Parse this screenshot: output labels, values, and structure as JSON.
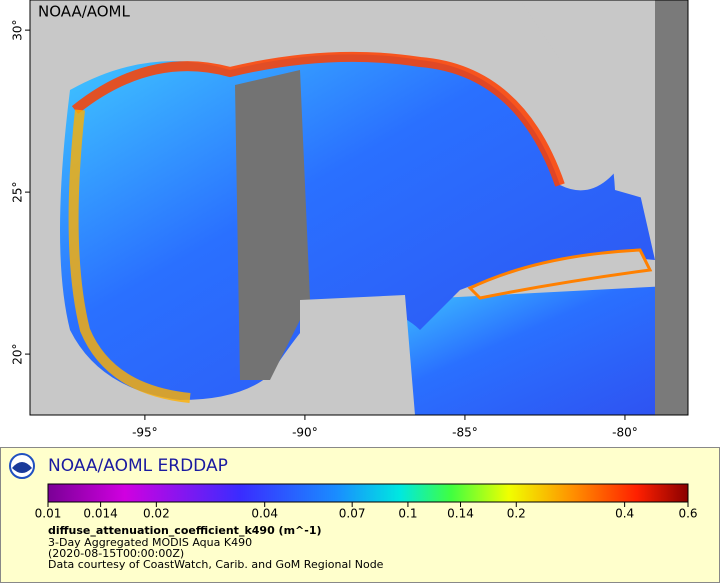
{
  "map": {
    "watermark": "NOAA/AOML",
    "xlim": [
      -98.59,
      -78.03
    ],
    "ylim": [
      18.12,
      30.93
    ],
    "xticks": [
      {
        "value": -95,
        "label": "-95°"
      },
      {
        "value": -90,
        "label": "-90°"
      },
      {
        "value": -85,
        "label": "-85°"
      },
      {
        "value": -80,
        "label": "-80°"
      }
    ],
    "yticks": [
      {
        "value": 20,
        "label": "20°"
      },
      {
        "value": 25,
        "label": "25°"
      },
      {
        "value": 30,
        "label": "30°"
      }
    ]
  },
  "legend": {
    "title": "NOAA/AOML ERDDAP",
    "colorbar": {
      "scale": "log",
      "range": [
        0.01,
        0.6
      ],
      "ticks": [
        0.01,
        0.014,
        0.02,
        0.04,
        0.07,
        0.1,
        0.14,
        0.2,
        0.4,
        0.6
      ]
    },
    "variable": "diffuse_attenuation_coefficient_k490 (m^-1)",
    "lines": [
      "3-Day Aggregated MODIS Aqua K490",
      "(2020-08-15T00:00:00Z)",
      "Data courtesy of CoastWatch, Carib. and GoM Regional Node"
    ]
  }
}
